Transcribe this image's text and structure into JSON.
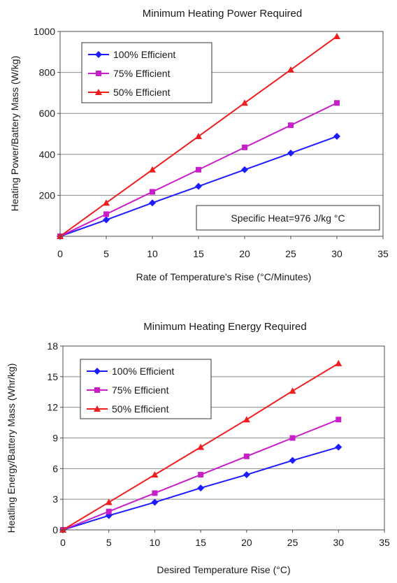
{
  "chart_data": [
    {
      "type": "line",
      "title": "Minimum Heating Power Required",
      "xlabel": "Rate of Temperature's Rise (°C/Minutes)",
      "ylabel": "Heating Power/Battery Mass (W/kg)",
      "xlim": [
        0,
        35
      ],
      "ylim": [
        0,
        1000
      ],
      "xticks": [
        "0",
        "5",
        "10",
        "15",
        "20",
        "25",
        "30",
        "35"
      ],
      "yticks": [
        "200",
        "400",
        "600",
        "800",
        "1000"
      ],
      "grid": "horizontal",
      "legend_placement": "top-left",
      "annotation": "Specific Heat=976 J/kg °C",
      "x": [
        0,
        5,
        10,
        15,
        20,
        25,
        30
      ],
      "series": [
        {
          "name": "100% Efficient",
          "color": "#1c1cff",
          "marker": "diamond",
          "values": [
            0,
            80,
            163,
            244,
            325,
            406,
            488
          ]
        },
        {
          "name": "75% Efficient",
          "color": "#c81ec8",
          "marker": "square",
          "values": [
            0,
            108,
            217,
            325,
            434,
            542,
            651
          ]
        },
        {
          "name": "50% Efficient",
          "color": "#f01e1e",
          "marker": "triangle",
          "values": [
            0,
            163,
            325,
            488,
            651,
            813,
            976
          ]
        }
      ]
    },
    {
      "type": "line",
      "title": "Minimum Heating Energy Required",
      "xlabel": "Desired Temperature Rise (°C)",
      "ylabel": "Heatling Energy/Battery Mass (Whr/kg)",
      "xlim": [
        0,
        35
      ],
      "ylim": [
        0,
        18
      ],
      "xticks": [
        "0",
        "5",
        "10",
        "15",
        "20",
        "25",
        "30",
        "35"
      ],
      "yticks": [
        "0",
        "3",
        "6",
        "9",
        "12",
        "15",
        "18"
      ],
      "grid": "horizontal",
      "legend_placement": "top-left",
      "x": [
        0,
        5,
        10,
        15,
        20,
        25,
        30
      ],
      "series": [
        {
          "name": "100% Efficient",
          "color": "#1c1cff",
          "marker": "diamond",
          "values": [
            0,
            1.4,
            2.7,
            4.1,
            5.4,
            6.8,
            8.1
          ]
        },
        {
          "name": "75% Efficient",
          "color": "#c81ec8",
          "marker": "square",
          "values": [
            0,
            1.8,
            3.6,
            5.4,
            7.2,
            9.0,
            10.8
          ]
        },
        {
          "name": "50% Efficient",
          "color": "#f01e1e",
          "marker": "triangle",
          "values": [
            0,
            2.7,
            5.4,
            8.1,
            10.8,
            13.6,
            16.3
          ]
        }
      ]
    }
  ]
}
